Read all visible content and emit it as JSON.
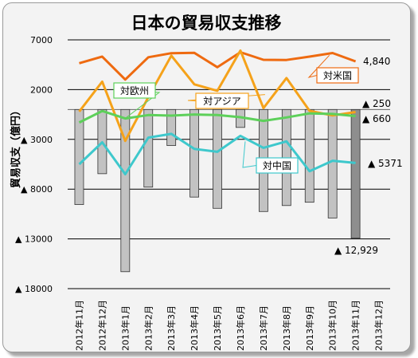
{
  "chart_data": {
    "type": "bar+line",
    "title": "日本の貿易収支推移",
    "ylabel": "貿易収支（億円）",
    "ylim": [
      -18000,
      7000
    ],
    "yticks": [
      {
        "value": 7000,
        "label": "7000"
      },
      {
        "value": 2000,
        "label": "2000"
      },
      {
        "value": -3000,
        "label": "▲ 3000"
      },
      {
        "value": -8000,
        "label": "▲ 8000"
      },
      {
        "value": -13000,
        "label": "▲ 13000"
      },
      {
        "value": -18000,
        "label": "▲ 18000"
      }
    ],
    "categories": [
      "2012年11月",
      "2012年12月",
      "2013年1月",
      "2013年2月",
      "2013年3月",
      "2013年4月",
      "2013年5月",
      "2013年6月",
      "2013年7月",
      "2013年8月",
      "2013年9月",
      "2013年10月",
      "2013年11月",
      "2013年12月"
    ],
    "grid": true,
    "bar_series": {
      "name": "",
      "values": [
        -9550,
        -6450,
        -16300,
        -7800,
        -3620,
        -8800,
        -9930,
        -1800,
        -10250,
        -9650,
        -9320,
        -10900,
        -12929,
        null
      ]
    },
    "series": [
      {
        "name": "対米国",
        "color": "#ee6a10",
        "values": [
          4650,
          5320,
          3010,
          5250,
          5660,
          5690,
          4250,
          5760,
          5000,
          4980,
          5320,
          5680,
          4840,
          null
        ]
      },
      {
        "name": "対アジア",
        "color": "#f5a21a",
        "values": [
          -200,
          2800,
          -3150,
          1250,
          5410,
          2530,
          1880,
          5930,
          140,
          3160,
          -130,
          -600,
          -250,
          null
        ]
      },
      {
        "name": "対欧州",
        "color": "#5dd05a",
        "values": [
          -1300,
          -150,
          -900,
          -560,
          -610,
          -500,
          -560,
          -770,
          -1140,
          -800,
          -390,
          -440,
          -660,
          null
        ]
      },
      {
        "name": "対中国",
        "color": "#3ec8cc",
        "values": [
          -5500,
          -3300,
          -6500,
          -2820,
          -2450,
          -3950,
          -4250,
          -2650,
          -3850,
          -3200,
          -6200,
          -5150,
          -5371,
          null
        ]
      }
    ],
    "annotations": [
      {
        "text": "4,840",
        "series": "対米国"
      },
      {
        "text": "▲ 250",
        "series": "対アジア"
      },
      {
        "text": "▲ 660",
        "series": "対欧州"
      },
      {
        "text": "▲ 5371",
        "series": "対中国"
      },
      {
        "text": "▲ 12,929",
        "series": "bar"
      }
    ]
  },
  "colors": {
    "background": "#f3f3f3",
    "bar_fill": "#c2c2c2",
    "bar_last_fill": "#8e8e8e",
    "bar_stroke": "#333333",
    "grid": "#000000"
  }
}
